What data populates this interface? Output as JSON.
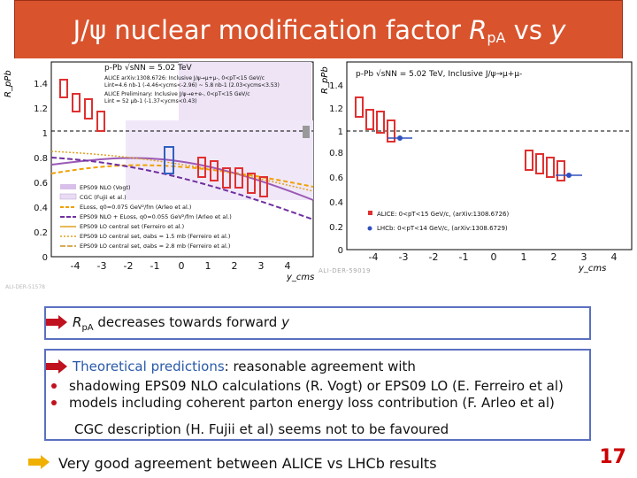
{
  "title": {
    "prefix": "J/ψ nuclear modification factor ",
    "var": "R",
    "sub": "pA",
    "suffix": " vs ",
    "y": "y"
  },
  "left_plot": {
    "ylabel": "R_pPb",
    "xlabel": "y_cms",
    "legend_header": [
      "p-Pb √sNN = 5.02 TeV",
      "ALICE arXiv:1308.6726: Inclusive J/ψ→μ+μ-, 0<pT<15 GeV/c",
      "Lint=4.6 nb-1 (-4.46<ycms<-2.96) ~ 5.8 nb-1 (2.03<ycms<3.53)",
      "ALICE Preliminary: Inclusive J/ψ→e+e-, 0<pT<15 GeV/c",
      "Lint = 52 µb-1 (-1.37<ycms<0.43)"
    ],
    "legend_models": [
      "EPS09 NLO (Vogt)",
      "CGC (Fujii et al.)",
      "ELoss, q0=0.075 GeV²/fm (Arleo et al.)",
      "EPS09 NLO + ELoss, q0=0.055 GeV²/fm (Arleo et al.)",
      "EPS09 LO central set (Ferreiro et al.)",
      "EPS09 LO central set, σabs = 1.5 mb (Ferreiro et al.)",
      "EPS09 LO central set, σabs = 2.8 mb (Ferreiro et al.)"
    ],
    "watermark": "ALI-DER-51578",
    "x_ticks": [
      "-4",
      "-3",
      "-2",
      "-1",
      "0",
      "1",
      "2",
      "3",
      "4"
    ],
    "y_ticks": [
      "0",
      "0.2",
      "0.4",
      "0.6",
      "0.8",
      "1",
      "1.2",
      "1.4"
    ]
  },
  "right_plot": {
    "ylabel": "R_pPb",
    "xlabel": "y_cms",
    "header": "p-Pb √sNN = 5.02 TeV, Inclusive J/ψ→μ+μ-",
    "legend": [
      "ALICE:   0<pT<15 GeV/c, (arXiv:1308.6726)",
      "LHCb:   0<pT<14 GeV/c, (arXiv:1308.6729)"
    ],
    "watermark": "ALI-DER-59019",
    "x_ticks": [
      "-4",
      "-3",
      "-2",
      "-1",
      "0",
      "1",
      "2",
      "3",
      "4"
    ],
    "y_ticks": [
      "0",
      "0.2",
      "0.4",
      "0.6",
      "0.8",
      "1",
      "1.2",
      "1.4"
    ]
  },
  "box1": {
    "prefix": "R",
    "sub": "pA",
    "text": " decreases towards forward ",
    "y": "y"
  },
  "box2": {
    "theory_label": "Theoretical predictions",
    "theory_rest": ": reasonable agreement with",
    "line1": "shadowing EPS09 NLO calculations (R. Vogt) or EPS09 LO (E. Ferreiro et al)",
    "line2": "models including coherent parton energy loss contribution (F. Arleo et al)",
    "line3": "CGC description (H. Fujii et al) seems not to be favoured"
  },
  "conclusion": "Very good agreement between ALICE vs LHCb results",
  "page_number": "17",
  "colors": {
    "title_bg": "#d9532d",
    "box_border": "#5a70c0",
    "arrow": "#f0b000",
    "page_number": "#cc0000"
  }
}
